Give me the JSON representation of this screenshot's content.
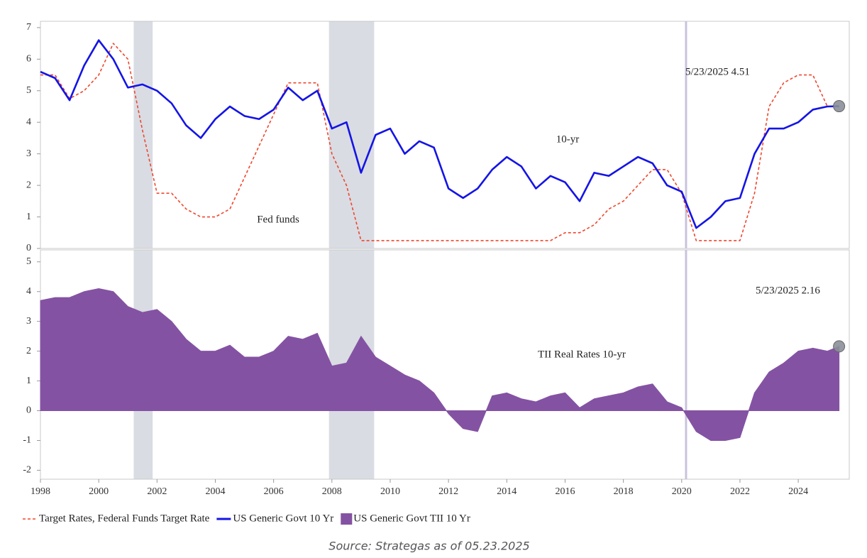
{
  "chart_data": [
    {
      "type": "line",
      "x": [
        1998,
        1998.5,
        1999,
        1999.5,
        2000,
        2000.5,
        2001,
        2001.5,
        2002,
        2002.5,
        2003,
        2003.5,
        2004,
        2004.5,
        2005,
        2005.5,
        2006,
        2006.5,
        2007,
        2007.5,
        2008,
        2008.5,
        2009,
        2009.5,
        2010,
        2010.5,
        2011,
        2011.5,
        2012,
        2012.5,
        2013,
        2013.5,
        2014,
        2014.5,
        2015,
        2015.5,
        2016,
        2016.5,
        2017,
        2017.5,
        2018,
        2018.5,
        2019,
        2019.5,
        2020,
        2020.5,
        2021,
        2021.5,
        2022,
        2022.5,
        2023,
        2023.5,
        2024,
        2024.5,
        2025,
        2025.4
      ],
      "series": [
        {
          "name": "Target Rates, Federal Funds Target Rate",
          "color": "#f0462d",
          "dash": true,
          "values": [
            5.5,
            5.5,
            4.75,
            5,
            5.5,
            6.5,
            6,
            3.75,
            1.75,
            1.75,
            1.25,
            1,
            1,
            1.25,
            2.25,
            3.25,
            4.25,
            5.25,
            5.25,
            5.25,
            3,
            2,
            0.25,
            0.25,
            0.25,
            0.25,
            0.25,
            0.25,
            0.25,
            0.25,
            0.25,
            0.25,
            0.25,
            0.25,
            0.25,
            0.25,
            0.5,
            0.5,
            0.75,
            1.25,
            1.5,
            2,
            2.5,
            2.5,
            1.75,
            0.25,
            0.25,
            0.25,
            0.25,
            1.75,
            4.5,
            5.25,
            5.5,
            5.5,
            4.5,
            4.5
          ]
        },
        {
          "name": "US Generic Govt 10 Yr",
          "color": "#1414e6",
          "values": [
            5.6,
            5.4,
            4.7,
            5.8,
            6.6,
            6,
            5.1,
            5.2,
            5,
            4.6,
            3.9,
            3.5,
            4.1,
            4.5,
            4.2,
            4.1,
            4.4,
            5.1,
            4.7,
            5,
            3.8,
            4,
            2.4,
            3.6,
            3.8,
            3,
            3.4,
            3.2,
            1.9,
            1.6,
            1.9,
            2.5,
            2.9,
            2.6,
            1.9,
            2.3,
            2.1,
            1.5,
            2.4,
            2.3,
            2.6,
            2.9,
            2.7,
            2,
            1.8,
            0.65,
            1,
            1.5,
            1.6,
            3,
            3.8,
            3.8,
            4,
            4.4,
            4.5,
            4.51
          ]
        }
      ],
      "xlim": [
        1998,
        2025.75
      ],
      "ylim": [
        0,
        7.2
      ],
      "yticks": [
        0,
        1,
        2,
        3,
        4,
        5,
        6,
        7
      ],
      "shaded_spans": [
        [
          2001.2,
          2001.85
        ],
        [
          2007.9,
          2009.45
        ]
      ],
      "event_line": 2020.15,
      "annotations": [
        "5/23/2025 4.51",
        "10-yr",
        "Fed funds"
      ]
    },
    {
      "type": "area",
      "x": [
        1998,
        1998.5,
        1999,
        1999.5,
        2000,
        2000.5,
        2001,
        2001.5,
        2002,
        2002.5,
        2003,
        2003.5,
        2004,
        2004.5,
        2005,
        2005.5,
        2006,
        2006.5,
        2007,
        2007.5,
        2008,
        2008.5,
        2009,
        2009.5,
        2010,
        2010.5,
        2011,
        2011.5,
        2012,
        2012.5,
        2013,
        2013.5,
        2014,
        2014.5,
        2015,
        2015.5,
        2016,
        2016.5,
        2017,
        2017.5,
        2018,
        2018.5,
        2019,
        2019.5,
        2020,
        2020.5,
        2021,
        2021.5,
        2022,
        2022.5,
        2023,
        2023.5,
        2024,
        2024.5,
        2025,
        2025.4
      ],
      "series": [
        {
          "name": "US Generic Govt TII 10 Yr",
          "color": "#8452a3",
          "values": [
            3.7,
            3.8,
            3.8,
            4,
            4.1,
            4,
            3.5,
            3.3,
            3.4,
            3,
            2.4,
            2,
            2,
            2.2,
            1.8,
            1.8,
            2,
            2.5,
            2.4,
            2.6,
            1.5,
            1.6,
            2.5,
            1.8,
            1.5,
            1.2,
            1,
            0.6,
            -0.1,
            -0.6,
            -0.7,
            0.5,
            0.6,
            0.4,
            0.3,
            0.5,
            0.6,
            0.1,
            0.4,
            0.5,
            0.6,
            0.8,
            0.9,
            0.3,
            0.1,
            -0.7,
            -1,
            -1,
            -0.9,
            0.6,
            1.3,
            1.6,
            2,
            2.1,
            2,
            2.16
          ]
        }
      ],
      "xlim": [
        1998,
        2025.75
      ],
      "xticks": [
        1998,
        2000,
        2002,
        2004,
        2006,
        2008,
        2010,
        2012,
        2014,
        2016,
        2018,
        2020,
        2022,
        2024
      ],
      "ylim": [
        -2.3,
        5.4
      ],
      "yticks": [
        -2,
        -1,
        0,
        1,
        2,
        3,
        4,
        5
      ],
      "shaded_spans": [
        [
          2001.2,
          2001.85
        ],
        [
          2007.9,
          2009.45
        ]
      ],
      "event_line": 2020.15,
      "annotations": [
        "5/23/2025 2.16",
        "TII Real Rates 10-yr"
      ],
      "source": "Source: Strategas as of 05.23.2025"
    }
  ]
}
